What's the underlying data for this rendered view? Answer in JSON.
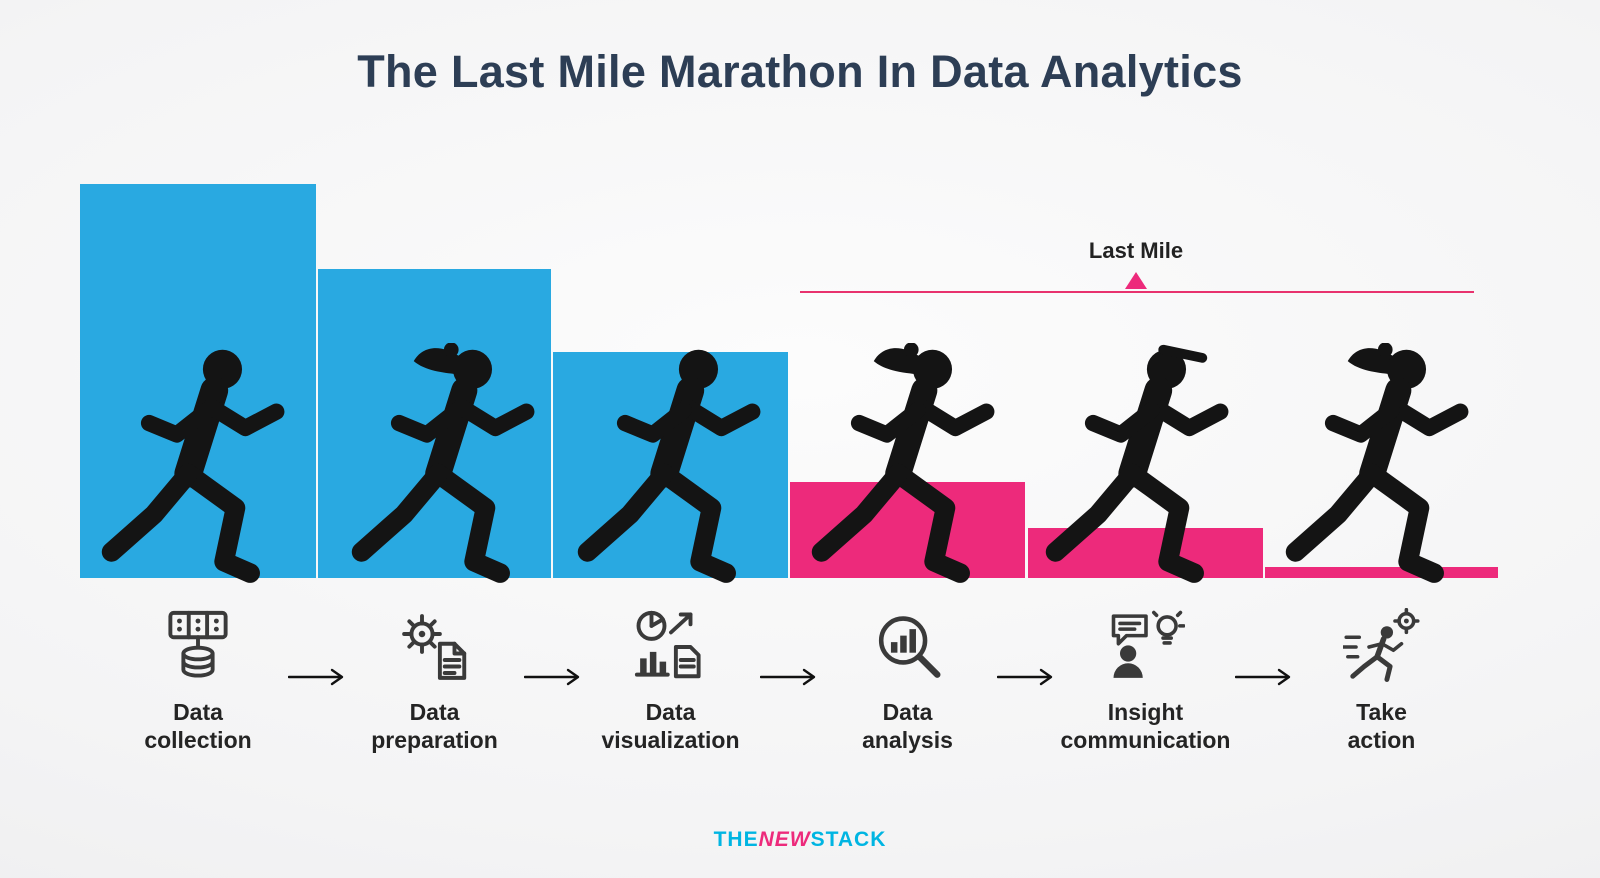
{
  "title": "The Last Mile Marathon In Data Analytics",
  "annotation": {
    "last_mile_label": "Last Mile"
  },
  "colors": {
    "blue": "#29A9E1",
    "pink": "#ED2A7B",
    "line_pink": "#E8326E",
    "title_text": "#2D3E55",
    "label_text": "#242424",
    "icon": "#3A3A3A"
  },
  "chart_data": {
    "type": "bar",
    "title": "The Last Mile Marathon In Data Analytics",
    "categories": [
      "Data collection",
      "Data preparation",
      "Data visualization",
      "Data analysis",
      "Insight communication",
      "Take action"
    ],
    "values": [
      394,
      309,
      226,
      96,
      50,
      11
    ],
    "unit": "relative effort height (px, descending staircase)",
    "bar_colors": [
      "#29A9E1",
      "#29A9E1",
      "#29A9E1",
      "#ED2A7B",
      "#ED2A7B",
      "#ED2A7B"
    ],
    "annotation": {
      "label": "Last Mile",
      "spans_categories": [
        "Data analysis",
        "Insight communication",
        "Take action"
      ]
    },
    "xlabel": "",
    "ylabel": "",
    "axes": "none",
    "grid": false,
    "legend": "none"
  },
  "stages": [
    {
      "line1": "Data",
      "line2": "collection",
      "icon": "data-collection-icon",
      "runner": "runner-m"
    },
    {
      "line1": "Data",
      "line2": "preparation",
      "icon": "data-preparation-icon",
      "runner": "runner-f"
    },
    {
      "line1": "Data",
      "line2": "visualization",
      "icon": "data-visualization-icon",
      "runner": "runner-m"
    },
    {
      "line1": "Data",
      "line2": "analysis",
      "icon": "data-analysis-icon",
      "runner": "runner-f"
    },
    {
      "line1": "Insight",
      "line2": "communication",
      "icon": "insight-communication-icon",
      "runner": "runner-cap"
    },
    {
      "line1": "Take",
      "line2": "action",
      "icon": "take-action-icon",
      "runner": "runner-f"
    }
  ],
  "footer": {
    "brand": [
      {
        "text": "THE",
        "color": "#00B5E2"
      },
      {
        "text": "NEW",
        "color": "#ED2A7B"
      },
      {
        "text": "STACK",
        "color": "#00B5E2"
      }
    ]
  }
}
